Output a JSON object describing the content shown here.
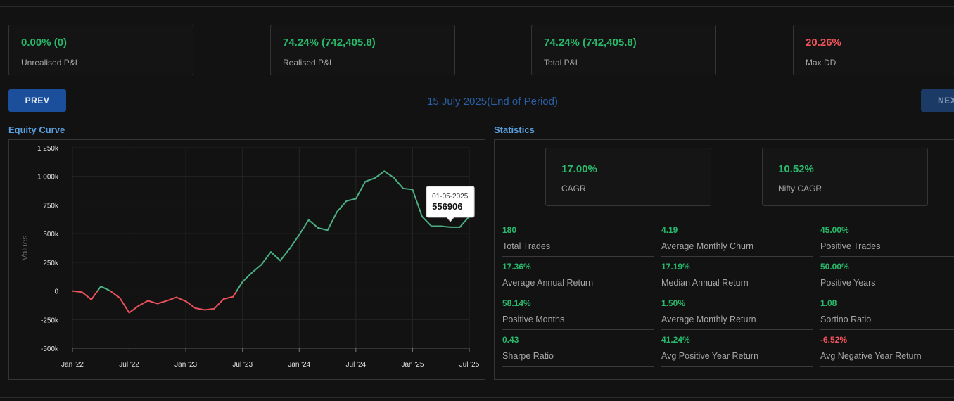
{
  "summary_cards": [
    {
      "value": "0.00% (0)",
      "label": "Unrealised P&L",
      "tone": "green"
    },
    {
      "value": "74.24% (742,405.8)",
      "label": "Realised P&L",
      "tone": "green"
    },
    {
      "value": "74.24% (742,405.8)",
      "label": "Total P&L",
      "tone": "green"
    },
    {
      "value": "20.26%",
      "label": "Max DD",
      "tone": "red"
    }
  ],
  "nav": {
    "prev_label": "PREV",
    "next_label": "NEXT",
    "period": "15 July 2025(End of Period)"
  },
  "equity": {
    "title": "Equity Curve"
  },
  "statistics": {
    "title": "Statistics",
    "top_cards": [
      {
        "value": "17.00%",
        "label": "CAGR"
      },
      {
        "value": "10.52%",
        "label": "Nifty CAGR"
      }
    ],
    "items": [
      {
        "value": "180",
        "label": "Total Trades",
        "tone": "green"
      },
      {
        "value": "4.19",
        "label": "Average Monthly Churn",
        "tone": "green"
      },
      {
        "value": "45.00%",
        "label": "Positive Trades",
        "tone": "green"
      },
      {
        "value": "17.36%",
        "label": "Average Annual Return",
        "tone": "green"
      },
      {
        "value": "17.19%",
        "label": "Median Annual Return",
        "tone": "green"
      },
      {
        "value": "50.00%",
        "label": "Positive Years",
        "tone": "green"
      },
      {
        "value": "58.14%",
        "label": "Positive Months",
        "tone": "green"
      },
      {
        "value": "1.50%",
        "label": "Average Monthly Return",
        "tone": "green"
      },
      {
        "value": "1.08",
        "label": "Sortino Ratio",
        "tone": "green"
      },
      {
        "value": "0.43",
        "label": "Sharpe Ratio",
        "tone": "green"
      },
      {
        "value": "41.24%",
        "label": "Avg Positive Year Return",
        "tone": "green"
      },
      {
        "value": "-6.52%",
        "label": "Avg Negative Year Return",
        "tone": "red"
      }
    ]
  },
  "chart_data": {
    "type": "line",
    "title": "",
    "xlabel": "",
    "ylabel": "Values",
    "ylim": [
      -500000,
      1250000
    ],
    "yticks": [
      -500000,
      -250000,
      0,
      250000,
      500000,
      750000,
      1000000,
      1250000
    ],
    "ytick_labels": [
      "-500k",
      "-250k",
      "0",
      "250k",
      "500k",
      "750k",
      "1 000k",
      "1 250k"
    ],
    "xlim": [
      0,
      42
    ],
    "xticks": [
      0,
      6,
      12,
      18,
      24,
      30,
      36,
      42
    ],
    "xtick_labels": [
      "Jan '22",
      "Jul '22",
      "Jan '23",
      "Jul '23",
      "Jan '24",
      "Jul '24",
      "Jan '25",
      "Jul '25"
    ],
    "positive_color": "#4caf83",
    "negative_color": "#e8505b",
    "x": [
      0,
      1,
      2,
      3,
      4,
      5,
      6,
      7,
      8,
      9,
      10,
      11,
      12,
      13,
      14,
      15,
      16,
      17,
      18,
      19,
      20,
      21,
      22,
      23,
      24,
      25,
      26,
      27,
      28,
      29,
      30,
      31,
      32,
      33,
      34,
      35,
      36,
      37,
      38,
      39,
      40,
      41,
      42
    ],
    "values": [
      0,
      -10000,
      -75000,
      40000,
      0,
      -60000,
      -190000,
      -130000,
      -85000,
      -110000,
      -85000,
      -55000,
      -90000,
      -150000,
      -165000,
      -155000,
      -70000,
      -50000,
      80000,
      160000,
      230000,
      340000,
      265000,
      370000,
      490000,
      620000,
      550000,
      530000,
      690000,
      785000,
      805000,
      955000,
      985000,
      1045000,
      990000,
      895000,
      885000,
      650000,
      565000,
      565000,
      556906,
      556906,
      650000
    ],
    "tooltip": {
      "date": "01-05-2025",
      "value": "556906",
      "x": 40
    }
  }
}
